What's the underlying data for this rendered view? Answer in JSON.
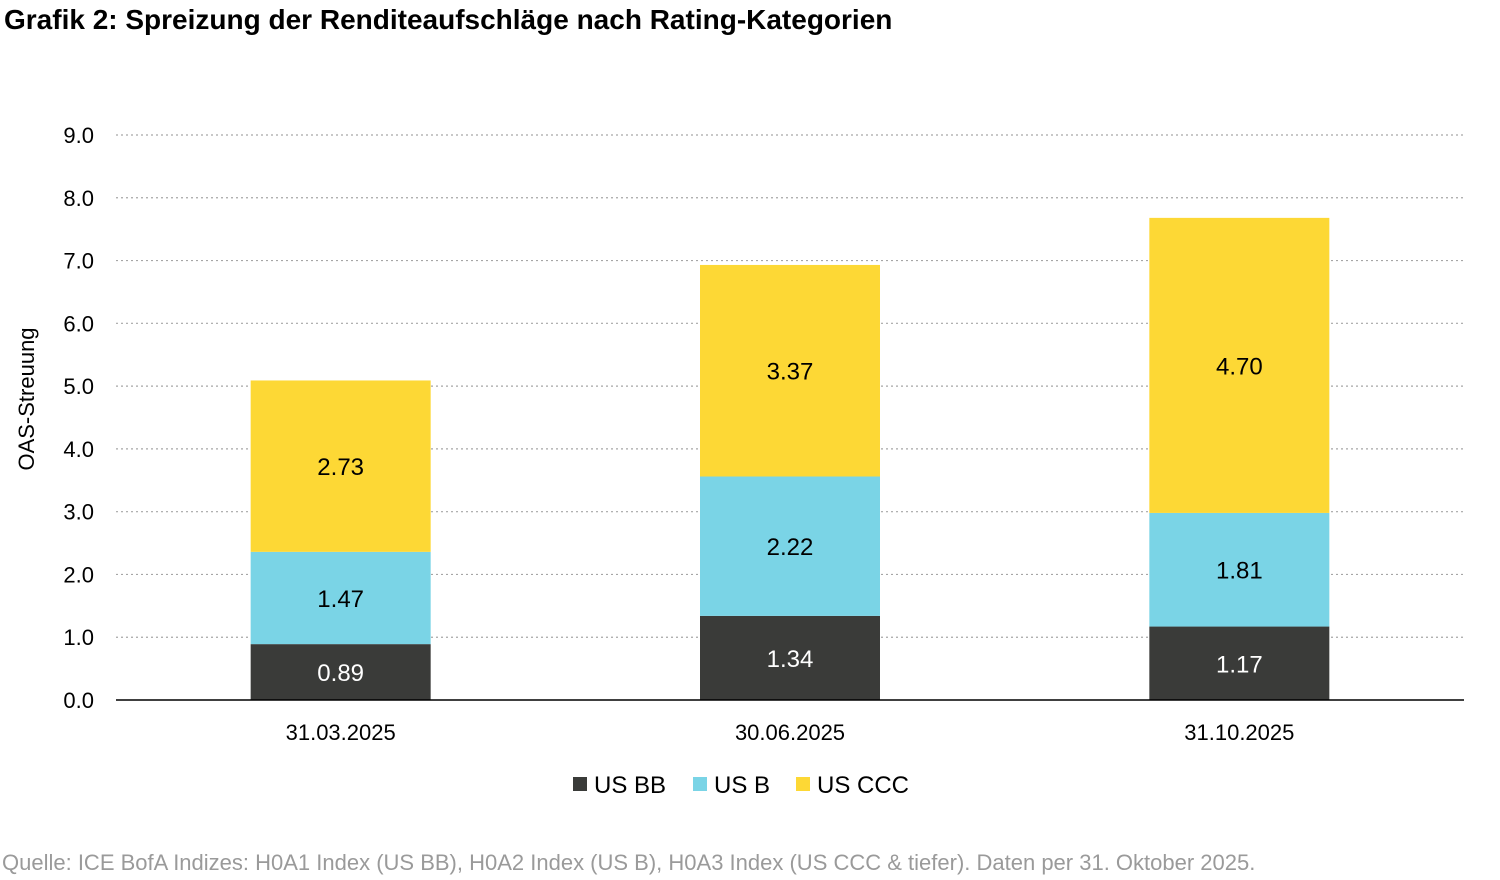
{
  "title": "Grafik 2: Spreizung der Renditeaufschläge nach Rating-Kategorien",
  "source": "Quelle: ICE BofA Indizes: H0A1 Index (US BB), H0A2 Index (US B), H0A3 Index (US CCC & tiefer). Daten per 31. Oktober 2025.",
  "chart_data": {
    "type": "bar",
    "stacked": true,
    "categories": [
      "31.03.2025",
      "30.06.2025",
      "31.10.2025"
    ],
    "ylabel": "OAS-Streuung",
    "ylim": [
      0,
      9
    ],
    "yticks": [
      "0.0",
      "1.0",
      "2.0",
      "3.0",
      "4.0",
      "5.0",
      "6.0",
      "7.0",
      "8.0",
      "9.0"
    ],
    "grid": "horizontal-dotted",
    "legend_position": "bottom",
    "series": [
      {
        "name": "US BB",
        "color": "#3a3b39",
        "label_color": "#ffffff",
        "values": [
          0.89,
          1.34,
          1.17
        ],
        "labels": [
          "0.89",
          "1.34",
          "1.17"
        ]
      },
      {
        "name": "US B",
        "color": "#7ad4e6",
        "label_color": "#000000",
        "values": [
          1.47,
          2.22,
          1.81
        ],
        "labels": [
          "1.47",
          "2.22",
          "1.81"
        ]
      },
      {
        "name": "US CCC",
        "color": "#fdd835",
        "label_color": "#000000",
        "values": [
          2.73,
          3.37,
          4.7
        ],
        "labels": [
          "2.73",
          "3.37",
          "4.70"
        ]
      }
    ]
  }
}
